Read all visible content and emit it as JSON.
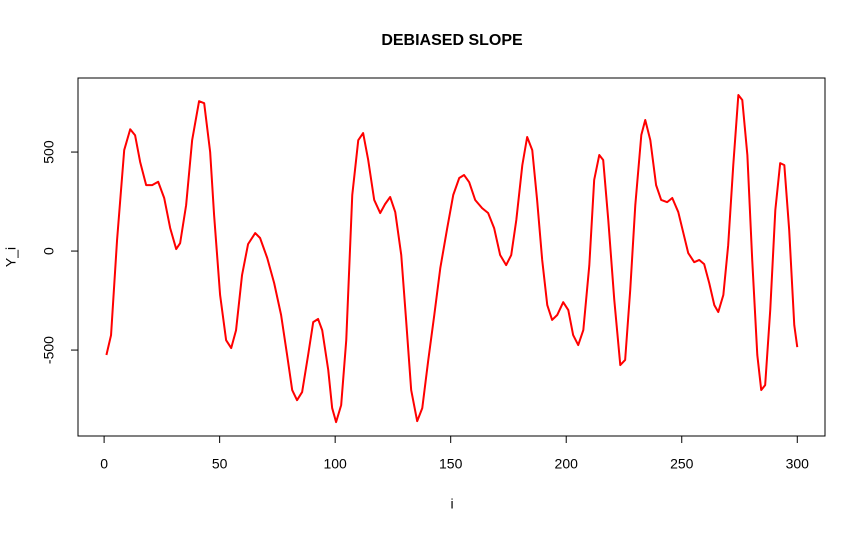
{
  "chart_data": {
    "type": "line",
    "title": "DEBIASED SLOPE",
    "x_label": "i",
    "y_label": "Y_i",
    "color": "#ff0000",
    "x": [
      1,
      3,
      5.6,
      8.7,
      11.3,
      13.4,
      15.6,
      18.2,
      20.8,
      23.4,
      26,
      28.6,
      31.2,
      32.9,
      35.5,
      38.1,
      41.1,
      43.3,
      45.9,
      47.6,
      50.2,
      52.8,
      55,
      57.1,
      59.7,
      62.3,
      65.4,
      67.5,
      70.6,
      73.6,
      76.6,
      79.2,
      81.4,
      83.5,
      85.7,
      88.3,
      90.5,
      92.6,
      94.4,
      97,
      98.7,
      100.4,
      102.6,
      104.8,
      107.4,
      110,
      112.1,
      114.3,
      116.9,
      119.5,
      121.6,
      123.8,
      126,
      128.6,
      130.7,
      132.9,
      135.5,
      137.7,
      140.3,
      142.9,
      145.5,
      148.5,
      151.1,
      153.7,
      155.8,
      158,
      160.6,
      163.6,
      166.2,
      168.8,
      171.4,
      174,
      176.2,
      178.4,
      181,
      183.1,
      185.3,
      187.4,
      189.6,
      191.8,
      193.9,
      196.1,
      198.7,
      200.9,
      203,
      205.2,
      207.4,
      210,
      212.1,
      214.3,
      216,
      218.2,
      220.8,
      223.4,
      225.5,
      227.7,
      229.9,
      232.5,
      234.2,
      236.4,
      238.9,
      241.1,
      243.7,
      245.9,
      248.5,
      250.6,
      252.8,
      255.4,
      257.6,
      259.7,
      261.9,
      264.1,
      265.8,
      268,
      270.1,
      272.3,
      274.5,
      276.2,
      278.4,
      280.5,
      282.7,
      284.4,
      286.1,
      288.3,
      290.5,
      292.6,
      294.4,
      296.5,
      298.7,
      300
    ],
    "values": [
      -525,
      -425,
      55,
      510,
      615,
      585,
      450,
      333,
      333,
      350,
      268,
      116,
      10,
      40,
      232,
      560,
      757,
      747,
      500,
      182,
      -222,
      -450,
      -490,
      -400,
      -121,
      35,
      91,
      66,
      -35,
      -162,
      -323,
      -525,
      -702,
      -753,
      -712,
      -525,
      -359,
      -343,
      -400,
      -600,
      -793,
      -864,
      -778,
      -450,
      283,
      560,
      596,
      460,
      258,
      192,
      237,
      273,
      197,
      -20,
      -348,
      -702,
      -859,
      -793,
      -550,
      -323,
      -86,
      116,
      283,
      369,
      384,
      348,
      258,
      217,
      192,
      116,
      -20,
      -71,
      -20,
      157,
      434,
      576,
      510,
      258,
      -45,
      -273,
      -348,
      -323,
      -258,
      -298,
      -424,
      -475,
      -399,
      -71,
      359,
      485,
      460,
      157,
      -247,
      -576,
      -550,
      -197,
      232,
      586,
      662,
      560,
      333,
      258,
      247,
      268,
      197,
      96,
      -10,
      -56,
      -45,
      -66,
      -162,
      -273,
      -308,
      -222,
      30,
      434,
      788,
      763,
      485,
      -45,
      -525,
      -702,
      -677,
      -298,
      207,
      444,
      434,
      106,
      -374,
      -485
    ],
    "xlim": [
      -11.3,
      312
    ],
    "ylim": [
      -934,
      874
    ],
    "xticks": [
      0,
      50,
      100,
      150,
      200,
      250,
      300
    ],
    "yticks": [
      -500,
      0,
      500
    ]
  }
}
